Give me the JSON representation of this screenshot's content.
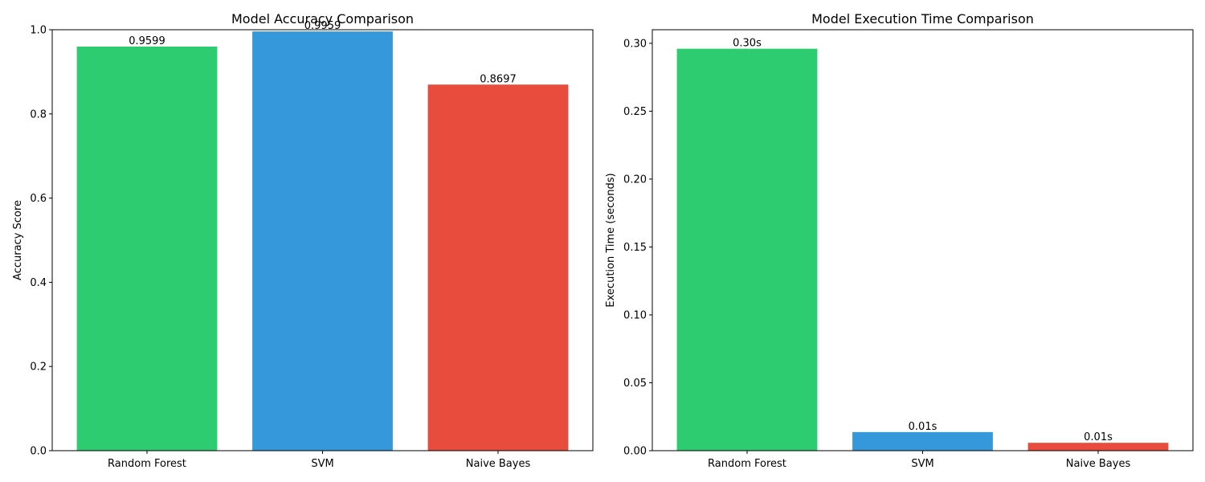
{
  "chart_data": [
    {
      "type": "bar",
      "title": "Model Accuracy Comparison",
      "xlabel": "",
      "ylabel": "Accuracy Score",
      "categories": [
        "Random Forest",
        "SVM",
        "Naive Bayes"
      ],
      "values": [
        0.9599,
        0.9959,
        0.8697
      ],
      "value_labels": [
        "0.9599",
        "0.9959",
        "0.8697"
      ],
      "colors": [
        "#2ecc71",
        "#3498db",
        "#e74c3c"
      ],
      "ylim": [
        0,
        1.0
      ],
      "yticks": [
        0.0,
        0.2,
        0.4,
        0.6,
        0.8,
        1.0
      ],
      "ytick_labels": [
        "0.0",
        "0.2",
        "0.4",
        "0.6",
        "0.8",
        "1.0"
      ],
      "grid": false,
      "legend": "none"
    },
    {
      "type": "bar",
      "title": "Model Execution Time Comparison",
      "xlabel": "",
      "ylabel": "Execution Time (seconds)",
      "categories": [
        "Random Forest",
        "SVM",
        "Naive Bayes"
      ],
      "values": [
        0.296,
        0.0137,
        0.0058
      ],
      "value_labels": [
        "0.30s",
        "0.01s",
        "0.01s"
      ],
      "colors": [
        "#2ecc71",
        "#3498db",
        "#e74c3c"
      ],
      "ylim": [
        0,
        0.31
      ],
      "yticks": [
        0.0,
        0.05,
        0.1,
        0.15,
        0.2,
        0.25,
        0.3
      ],
      "ytick_labels": [
        "0.00",
        "0.05",
        "0.10",
        "0.15",
        "0.20",
        "0.25",
        "0.30"
      ],
      "grid": false,
      "legend": "none"
    }
  ]
}
